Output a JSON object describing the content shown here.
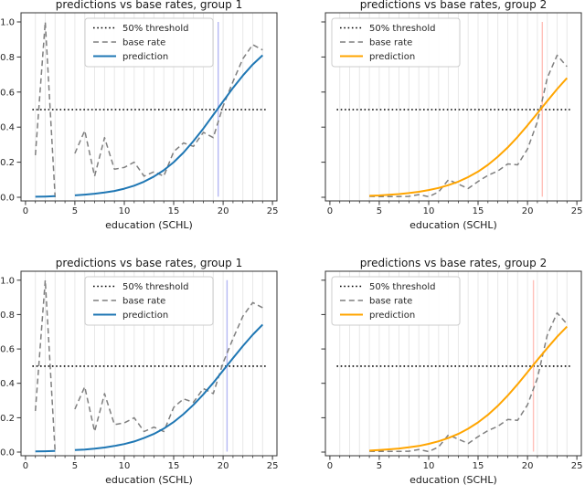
{
  "figure": {
    "background": "#ffffff",
    "legend_labels": [
      "50% threshold",
      "base rate",
      "prediction"
    ],
    "colors": {
      "threshold": "#000000",
      "base_rate": "#7f7f7f",
      "prediction_group1": "#1f77b4",
      "prediction_group2": "#ffa500",
      "marker_group1": "#b5b8f3",
      "marker_group2": "#ffc1ba",
      "grid": "#e8e8e8",
      "spine": "#333333",
      "text": "#262626"
    }
  },
  "chart_data": [
    {
      "type": "line",
      "title": "predictions vs base rates, group 1",
      "xlabel": "education (SCHL)",
      "xlim": [
        -0.45,
        25.45
      ],
      "ylim": [
        -0.021,
        1.052
      ],
      "x_ticks": [
        0,
        5,
        10,
        15,
        20,
        25
      ],
      "x_tick_labels": [
        "0",
        "5",
        "10",
        "15",
        "20",
        "25"
      ],
      "x_minor_ticks": [
        1,
        2,
        3,
        4,
        6,
        7,
        8,
        9,
        11,
        12,
        13,
        14,
        16,
        17,
        18,
        19,
        21,
        22,
        23,
        24
      ],
      "y_ticks": [
        0,
        0.2,
        0.4,
        0.6,
        0.8,
        1.0
      ],
      "y_tick_labels": [
        "0.0",
        "0.2",
        "0.4",
        "0.6",
        "0.8",
        "1.0"
      ],
      "y_tick_labels_shown": true,
      "grid_x": [
        1,
        2,
        3,
        4,
        5,
        6,
        7,
        8,
        9,
        10,
        11,
        12,
        13,
        14,
        15,
        16,
        17,
        18,
        19,
        20,
        21,
        22,
        23,
        24
      ],
      "grid_on": true,
      "legend_position": "upper-center-left",
      "threshold": {
        "label": "50% threshold",
        "y": 0.5,
        "x_range": [
          0.7,
          24.3
        ]
      },
      "marker_x": 19.5,
      "marker_color_key": "marker_group1",
      "prediction_color_key": "prediction_group1",
      "series": [
        {
          "name": "base rate",
          "style": "dashed",
          "x": [
            1,
            2,
            3,
            4,
            5,
            6,
            7,
            8,
            9,
            10,
            11,
            12,
            13,
            14,
            15,
            16,
            17,
            18,
            19,
            20,
            21,
            22,
            23,
            24
          ],
          "y": [
            0.24,
            1.0,
            0.0,
            null,
            0.25,
            0.38,
            0.12,
            0.34,
            0.16,
            0.17,
            0.2,
            0.12,
            0.145,
            0.12,
            0.26,
            0.31,
            0.29,
            0.37,
            0.34,
            0.52,
            0.66,
            0.79,
            0.87,
            0.84
          ]
        },
        {
          "name": "prediction",
          "style": "solid",
          "x": [
            1,
            2,
            3,
            4,
            5,
            6,
            7,
            8,
            9,
            10,
            11,
            12,
            13,
            14,
            15,
            16,
            17,
            18,
            19,
            20,
            21,
            22,
            23,
            24
          ],
          "y": [
            0.003,
            0.004,
            0.006,
            null,
            0.011,
            0.015,
            0.02,
            0.027,
            0.036,
            0.049,
            0.066,
            0.089,
            0.118,
            0.154,
            0.2,
            0.255,
            0.32,
            0.392,
            0.469,
            0.547,
            0.624,
            0.694,
            0.757,
            0.81
          ]
        }
      ]
    },
    {
      "type": "line",
      "title": "predictions vs base rates, group 2",
      "xlabel": "education (SCHL)",
      "xlim": [
        -0.45,
        25.45
      ],
      "ylim": [
        -0.021,
        1.052
      ],
      "x_ticks": [
        0,
        5,
        10,
        15,
        20,
        25
      ],
      "x_tick_labels": [
        "0",
        "5",
        "10",
        "15",
        "20",
        "25"
      ],
      "x_minor_ticks": [
        1,
        2,
        3,
        4,
        6,
        7,
        8,
        9,
        11,
        12,
        13,
        14,
        16,
        17,
        18,
        19,
        21,
        22,
        23,
        24
      ],
      "y_ticks": [
        0,
        0.2,
        0.4,
        0.6,
        0.8,
        1.0
      ],
      "y_tick_labels": [],
      "y_tick_labels_shown": false,
      "grid_x": [
        1,
        2,
        3,
        4,
        5,
        6,
        7,
        8,
        9,
        10,
        11,
        12,
        13,
        14,
        15,
        16,
        17,
        18,
        19,
        20,
        21,
        22,
        23,
        24
      ],
      "grid_on": true,
      "legend_position": "upper-left",
      "threshold": {
        "label": "50% threshold",
        "y": 0.5,
        "x_range": [
          0.7,
          24.3
        ]
      },
      "marker_x": 21.5,
      "marker_color_key": "marker_group2",
      "prediction_color_key": "prediction_group2",
      "series": [
        {
          "name": "base rate",
          "style": "dashed",
          "x": [
            4,
            5,
            6,
            7,
            8,
            9,
            10,
            11,
            12,
            13,
            14,
            15,
            16,
            17,
            18,
            19,
            20,
            21,
            22,
            23,
            24
          ],
          "y": [
            0.005,
            0.004,
            0.004,
            0.004,
            0.005,
            0.015,
            0.003,
            0.03,
            0.1,
            0.075,
            0.05,
            0.09,
            0.125,
            0.15,
            0.19,
            0.185,
            0.275,
            0.43,
            0.68,
            0.81,
            0.745
          ]
        },
        {
          "name": "prediction",
          "style": "solid",
          "x": [
            4,
            5,
            6,
            7,
            8,
            9,
            10,
            11,
            12,
            13,
            14,
            15,
            16,
            17,
            18,
            19,
            20,
            21,
            22,
            23,
            24
          ],
          "y": [
            0.008,
            0.01,
            0.014,
            0.018,
            0.024,
            0.031,
            0.041,
            0.053,
            0.069,
            0.089,
            0.115,
            0.146,
            0.185,
            0.231,
            0.284,
            0.344,
            0.41,
            0.479,
            0.549,
            0.617,
            0.68
          ]
        }
      ]
    },
    {
      "type": "line",
      "title": "predictions vs base rates, group 1",
      "xlabel": "education (SCHL)",
      "xlim": [
        -0.45,
        25.45
      ],
      "ylim": [
        -0.021,
        1.052
      ],
      "x_ticks": [
        0,
        5,
        10,
        15,
        20,
        25
      ],
      "x_tick_labels": [
        "0",
        "5",
        "10",
        "15",
        "20",
        "25"
      ],
      "x_minor_ticks": [
        1,
        2,
        3,
        4,
        6,
        7,
        8,
        9,
        11,
        12,
        13,
        14,
        16,
        17,
        18,
        19,
        21,
        22,
        23,
        24
      ],
      "y_ticks": [
        0,
        0.2,
        0.4,
        0.6,
        0.8,
        1.0
      ],
      "y_tick_labels": [
        "0.0",
        "0.2",
        "0.4",
        "0.6",
        "0.8",
        "1.0"
      ],
      "y_tick_labels_shown": true,
      "grid_x": [
        1,
        2,
        3,
        4,
        5,
        6,
        7,
        8,
        9,
        10,
        11,
        12,
        13,
        14,
        15,
        16,
        17,
        18,
        19,
        20,
        21,
        22,
        23,
        24
      ],
      "grid_on": true,
      "legend_position": "upper-center-left",
      "threshold": {
        "label": "50% threshold",
        "y": 0.5,
        "x_range": [
          0.7,
          24.3
        ]
      },
      "marker_x": 20.4,
      "marker_color_key": "marker_group1",
      "prediction_color_key": "prediction_group1",
      "series": [
        {
          "name": "base rate",
          "style": "dashed",
          "x": [
            1,
            2,
            3,
            4,
            5,
            6,
            7,
            8,
            9,
            10,
            11,
            12,
            13,
            14,
            15,
            16,
            17,
            18,
            19,
            20,
            21,
            22,
            23,
            24
          ],
          "y": [
            0.24,
            1.0,
            0.0,
            null,
            0.25,
            0.38,
            0.12,
            0.34,
            0.16,
            0.17,
            0.2,
            0.12,
            0.145,
            0.12,
            0.26,
            0.31,
            0.29,
            0.37,
            0.34,
            0.52,
            0.66,
            0.79,
            0.87,
            0.84
          ]
        },
        {
          "name": "prediction",
          "style": "solid",
          "x": [
            1,
            2,
            3,
            4,
            5,
            6,
            7,
            8,
            9,
            10,
            11,
            12,
            13,
            14,
            15,
            16,
            17,
            18,
            19,
            20,
            21,
            22,
            23,
            24
          ],
          "y": [
            0.004,
            0.005,
            0.007,
            null,
            0.012,
            0.015,
            0.02,
            0.027,
            0.036,
            0.047,
            0.062,
            0.082,
            0.106,
            0.137,
            0.175,
            0.221,
            0.275,
            0.336,
            0.403,
            0.475,
            0.547,
            0.617,
            0.683,
            0.742
          ]
        }
      ]
    },
    {
      "type": "line",
      "title": "predictions vs base rates, group 2",
      "xlabel": "education (SCHL)",
      "xlim": [
        -0.45,
        25.45
      ],
      "ylim": [
        -0.021,
        1.052
      ],
      "x_ticks": [
        0,
        5,
        10,
        15,
        20,
        25
      ],
      "x_tick_labels": [
        "0",
        "5",
        "10",
        "15",
        "20",
        "25"
      ],
      "x_minor_ticks": [
        1,
        2,
        3,
        4,
        6,
        7,
        8,
        9,
        11,
        12,
        13,
        14,
        16,
        17,
        18,
        19,
        21,
        22,
        23,
        24
      ],
      "y_ticks": [
        0,
        0.2,
        0.4,
        0.6,
        0.8,
        1.0
      ],
      "y_tick_labels": [],
      "y_tick_labels_shown": false,
      "grid_x": [
        1,
        2,
        3,
        4,
        5,
        6,
        7,
        8,
        9,
        10,
        11,
        12,
        13,
        14,
        15,
        16,
        17,
        18,
        19,
        20,
        21,
        22,
        23,
        24
      ],
      "grid_on": true,
      "legend_position": "upper-left",
      "threshold": {
        "label": "50% threshold",
        "y": 0.5,
        "x_range": [
          0.7,
          24.3
        ]
      },
      "marker_x": 20.6,
      "marker_color_key": "marker_group2",
      "prediction_color_key": "prediction_group2",
      "series": [
        {
          "name": "base rate",
          "style": "dashed",
          "x": [
            4,
            5,
            6,
            7,
            8,
            9,
            10,
            11,
            12,
            13,
            14,
            15,
            16,
            17,
            18,
            19,
            20,
            21,
            22,
            23,
            24
          ],
          "y": [
            0.005,
            0.004,
            0.004,
            0.004,
            0.005,
            0.015,
            0.003,
            0.03,
            0.1,
            0.075,
            0.05,
            0.09,
            0.125,
            0.15,
            0.19,
            0.185,
            0.275,
            0.43,
            0.68,
            0.81,
            0.745
          ]
        },
        {
          "name": "prediction",
          "style": "solid",
          "x": [
            4,
            5,
            6,
            7,
            8,
            9,
            10,
            11,
            12,
            13,
            14,
            15,
            16,
            17,
            18,
            19,
            20,
            21,
            22,
            23,
            24
          ],
          "y": [
            0.009,
            0.012,
            0.016,
            0.021,
            0.028,
            0.036,
            0.048,
            0.063,
            0.082,
            0.106,
            0.136,
            0.173,
            0.217,
            0.269,
            0.329,
            0.395,
            0.465,
            0.536,
            0.605,
            0.671,
            0.73
          ]
        }
      ]
    }
  ]
}
